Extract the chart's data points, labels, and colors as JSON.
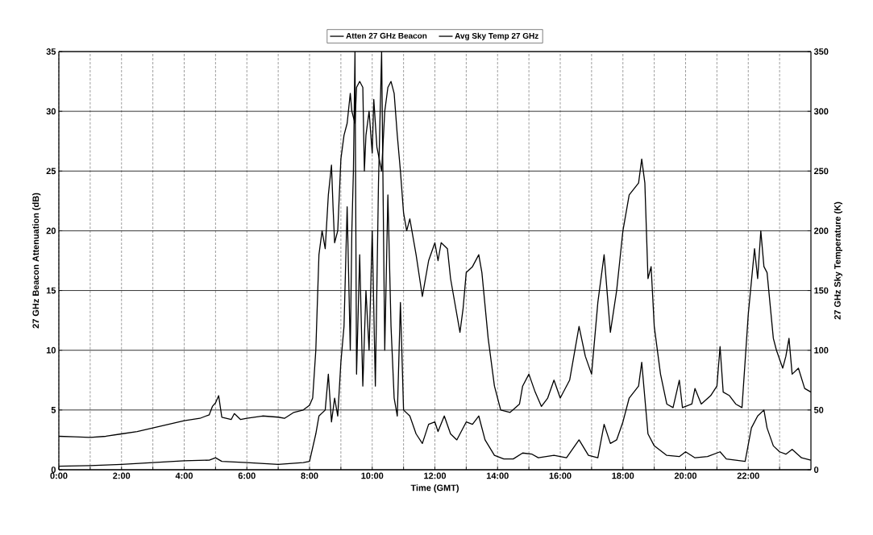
{
  "chart_data": {
    "type": "line",
    "xlabel": "Time (GMT)",
    "ylabel": "27 GHz Beacon Attenuation (dB)",
    "y2label": "27 GHz Sky Temperature (K)",
    "xlim": [
      0,
      24
    ],
    "xticks": [
      {
        "value": 0,
        "label": "0:00"
      },
      {
        "value": 1,
        "label": null
      },
      {
        "value": 2,
        "label": "2:00"
      },
      {
        "value": 3,
        "label": null
      },
      {
        "value": 4,
        "label": "4:00"
      },
      {
        "value": 5,
        "label": null
      },
      {
        "value": 6,
        "label": "6:00"
      },
      {
        "value": 7,
        "label": null
      },
      {
        "value": 8,
        "label": "8:00"
      },
      {
        "value": 9,
        "label": null
      },
      {
        "value": 10,
        "label": "10:00"
      },
      {
        "value": 11,
        "label": null
      },
      {
        "value": 12,
        "label": "12:00"
      },
      {
        "value": 13,
        "label": null
      },
      {
        "value": 14,
        "label": "14:00"
      },
      {
        "value": 15,
        "label": null
      },
      {
        "value": 16,
        "label": "16:00"
      },
      {
        "value": 17,
        "label": null
      },
      {
        "value": 18,
        "label": "18:00"
      },
      {
        "value": 19,
        "label": null
      },
      {
        "value": 20,
        "label": "20:00"
      },
      {
        "value": 21,
        "label": null
      },
      {
        "value": 22,
        "label": "22:00"
      },
      {
        "value": 23,
        "label": null
      }
    ],
    "ylim": [
      0,
      35
    ],
    "yticks": [
      0,
      5,
      10,
      15,
      20,
      25,
      30,
      35
    ],
    "y2lim": [
      0,
      350
    ],
    "y2ticks": [
      0,
      50,
      100,
      150,
      200,
      250,
      300,
      350
    ],
    "grid": true,
    "legend": "top",
    "marker": "none",
    "line_style": "solid",
    "series": [
      {
        "name": "Atten 27 GHz Beacon",
        "color": "#000000",
        "x": [
          0,
          1,
          2,
          3,
          4,
          4.8,
          5.0,
          5.2,
          6,
          7,
          7.8,
          8.0,
          8.2,
          8.3,
          8.5,
          8.6,
          8.7,
          8.8,
          8.9,
          9.0,
          9.1,
          9.2,
          9.3,
          9.35,
          9.4,
          9.45,
          9.5,
          9.6,
          9.7,
          9.8,
          9.9,
          10.0,
          10.1,
          10.2,
          10.3,
          10.4,
          10.5,
          10.6,
          10.7,
          10.8,
          10.9,
          11.0,
          11.2,
          11.4,
          11.6,
          11.8,
          12.0,
          12.1,
          12.3,
          12.5,
          12.7,
          13.0,
          13.2,
          13.4,
          13.6,
          13.9,
          14.2,
          14.5,
          14.8,
          15.1,
          15.3,
          15.8,
          16.2,
          16.6,
          16.9,
          17.2,
          17.4,
          17.6,
          17.8,
          18.0,
          18.2,
          18.5,
          18.6,
          18.7,
          18.8,
          19.0,
          19.4,
          19.8,
          20.0,
          20.3,
          20.7,
          21.1,
          21.3,
          21.6,
          21.9,
          22.1,
          22.3,
          22.5,
          22.6,
          22.8,
          23.0,
          23.2,
          23.4,
          23.7,
          24
        ],
        "values": [
          0.3,
          0.35,
          0.45,
          0.6,
          0.75,
          0.8,
          1.0,
          0.7,
          0.6,
          0.45,
          0.6,
          0.7,
          3,
          4.5,
          5,
          8,
          4,
          6,
          4.5,
          9,
          12,
          22,
          10,
          20,
          25,
          35,
          8,
          18,
          7,
          15,
          10,
          20,
          7,
          24,
          35,
          10,
          23,
          12,
          6,
          4.5,
          14,
          5,
          4.5,
          3,
          2.2,
          3.8,
          4,
          3.2,
          4.5,
          3,
          2.5,
          4,
          3.8,
          4.5,
          2.5,
          1.2,
          0.9,
          0.9,
          1.4,
          1.3,
          1.0,
          1.2,
          1.0,
          2.5,
          1.2,
          1.0,
          3.8,
          2.2,
          2.5,
          4,
          6,
          7,
          9,
          6,
          3,
          2,
          1.2,
          1.1,
          1.5,
          1.0,
          1.1,
          1.5,
          0.9,
          0.8,
          0.7,
          3.5,
          4.5,
          5,
          3.5,
          2,
          1.5,
          1.3,
          1.7,
          1.0,
          0.8
        ]
      },
      {
        "name": "Avg Sky Temp 27 GHz",
        "color": "#000000",
        "axis": "y2",
        "x": [
          0,
          0.5,
          1,
          1.5,
          2,
          2.5,
          3,
          3.5,
          4,
          4.5,
          4.8,
          4.9,
          5.0,
          5.1,
          5.2,
          5.5,
          5.6,
          5.8,
          6,
          6.5,
          7,
          7.2,
          7.5,
          7.8,
          8.0,
          8.1,
          8.2,
          8.3,
          8.4,
          8.5,
          8.6,
          8.7,
          8.75,
          8.8,
          8.9,
          9.0,
          9.1,
          9.2,
          9.3,
          9.35,
          9.45,
          9.5,
          9.6,
          9.7,
          9.75,
          9.8,
          9.9,
          10.0,
          10.05,
          10.15,
          10.3,
          10.4,
          10.5,
          10.6,
          10.7,
          10.8,
          10.9,
          11.0,
          11.1,
          11.2,
          11.4,
          11.6,
          11.8,
          12.0,
          12.1,
          12.2,
          12.4,
          12.5,
          12.7,
          12.8,
          12.9,
          13.0,
          13.2,
          13.4,
          13.5,
          13.7,
          13.9,
          14.1,
          14.4,
          14.7,
          14.8,
          15.0,
          15.2,
          15.4,
          15.6,
          15.8,
          16.0,
          16.3,
          16.6,
          16.8,
          17.0,
          17.2,
          17.4,
          17.6,
          17.8,
          17.9,
          18.0,
          18.2,
          18.5,
          18.6,
          18.7,
          18.8,
          18.9,
          19.0,
          19.2,
          19.4,
          19.6,
          19.8,
          19.9,
          20.2,
          20.3,
          20.5,
          20.8,
          21.0,
          21.1,
          21.2,
          21.4,
          21.6,
          21.8,
          22.0,
          22.2,
          22.3,
          22.4,
          22.5,
          22.6,
          22.8,
          22.9,
          23.1,
          23.2,
          23.3,
          23.4,
          23.6,
          23.8,
          24
        ],
        "values": [
          28,
          27.5,
          27,
          28,
          30,
          32,
          35,
          38,
          41,
          43,
          46,
          53,
          56,
          62,
          44,
          42,
          47,
          42,
          43,
          45,
          44,
          43,
          48,
          50,
          54,
          60,
          100,
          180,
          200,
          185,
          230,
          255,
          220,
          190,
          200,
          260,
          280,
          290,
          315,
          300,
          290,
          320,
          325,
          320,
          250,
          280,
          300,
          265,
          310,
          270,
          250,
          300,
          320,
          325,
          315,
          280,
          250,
          215,
          200,
          210,
          180,
          145,
          175,
          190,
          175,
          190,
          185,
          160,
          130,
          115,
          135,
          165,
          170,
          180,
          165,
          110,
          70,
          50,
          48,
          55,
          70,
          80,
          65,
          53,
          60,
          75,
          60,
          75,
          120,
          95,
          80,
          140,
          180,
          115,
          150,
          175,
          200,
          230,
          240,
          260,
          240,
          160,
          170,
          120,
          80,
          55,
          52,
          75,
          52,
          55,
          68,
          55,
          62,
          70,
          103,
          65,
          62,
          55,
          52,
          130,
          185,
          160,
          200,
          170,
          165,
          110,
          100,
          85,
          95,
          110,
          80,
          85,
          68,
          65
        ]
      }
    ]
  }
}
